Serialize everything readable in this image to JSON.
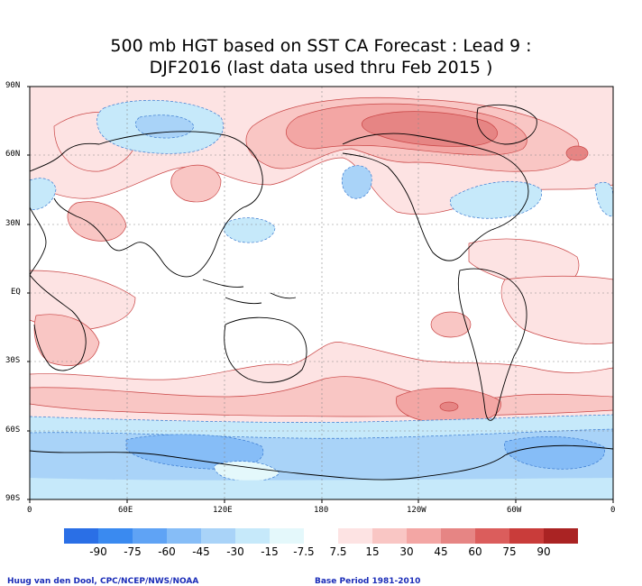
{
  "map": {
    "title_line1": "500 mb HGT based on SST CA Forecast : Lead 9 :",
    "title_line2": "DJF2016 (last data used thru Feb 2015 )",
    "lat_labels": [
      "90N",
      "60N",
      "30N",
      "EQ",
      "30S",
      "60S",
      "90S"
    ],
    "lon_labels": [
      "0",
      "60E",
      "120E",
      "180",
      "120W",
      "60W",
      "0"
    ],
    "legend": {
      "levels": [
        "-90",
        "-75",
        "-60",
        "-45",
        "-30",
        "-15",
        "-7.5",
        "7.5",
        "15",
        "30",
        "45",
        "60",
        "75",
        "90"
      ],
      "colors": [
        "#2a6fe6",
        "#3a8af0",
        "#5fa3f5",
        "#86bdf7",
        "#a9d3f8",
        "#c6e9fa",
        "#e4f8fb",
        "#ffffff",
        "#fde3e3",
        "#f9c6c4",
        "#f3a6a4",
        "#e68584",
        "#db5d5c",
        "#c93c3a",
        "#aa2323"
      ]
    },
    "credit_left": "Huug van den Dool, CPC/NCEP/NWS/NOAA",
    "credit_right": "Base Period 1981-2010"
  }
}
